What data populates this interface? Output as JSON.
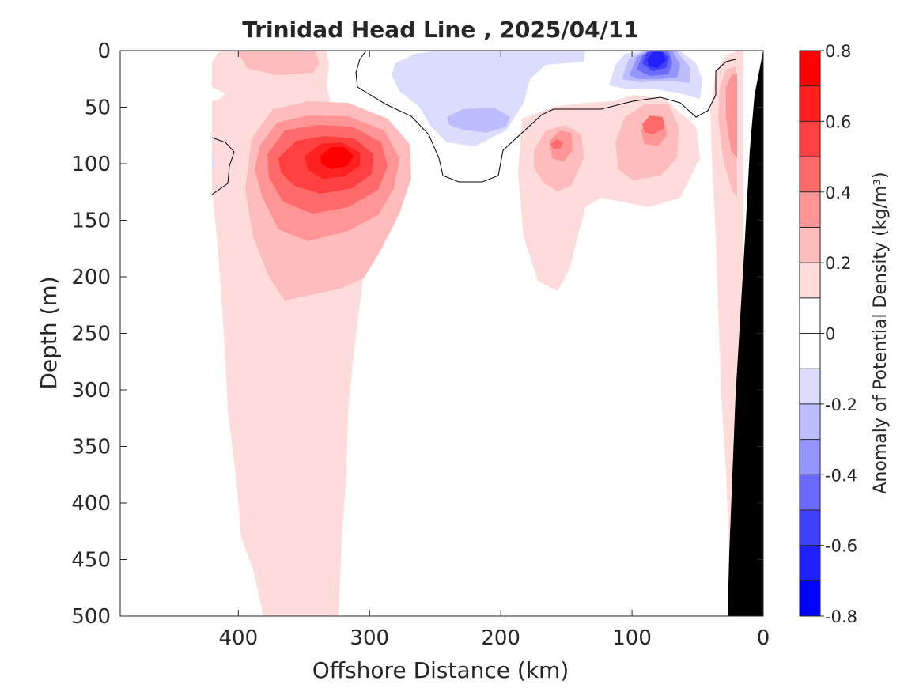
{
  "chart_data": {
    "type": "contour",
    "title": "Trinidad Head Line , 2025/04/11",
    "xlabel": "Offshore Distance (km)",
    "ylabel": "Depth (m)",
    "xlim": [
      490,
      0
    ],
    "ylim": [
      500,
      0
    ],
    "x_reversed": true,
    "y_reversed": true,
    "xticks": [
      400,
      300,
      200,
      100,
      0
    ],
    "xtick_labels": [
      "400",
      "300",
      "200",
      "100",
      "0"
    ],
    "yticks": [
      0,
      50,
      100,
      150,
      200,
      250,
      300,
      350,
      400,
      450,
      500
    ],
    "ytick_labels": [
      "0",
      "50",
      "100",
      "150",
      "200",
      "250",
      "300",
      "350",
      "400",
      "450",
      "500"
    ],
    "colorbar": {
      "label": "Anomaly of Potential Density (kg/m³)",
      "levels": [
        -0.8,
        -0.7,
        -0.6,
        -0.5,
        -0.4,
        -0.3,
        -0.2,
        -0.1,
        0,
        0.1,
        0.2,
        0.3,
        0.4,
        0.5,
        0.6,
        0.7,
        0.8
      ],
      "tick_values": [
        0.8,
        0.6,
        0.4,
        0.2,
        0,
        -0.2,
        -0.4,
        -0.6,
        -0.8
      ],
      "tick_labels": [
        "0.8",
        "0.6",
        "0.4",
        "0.2",
        "0",
        "-0.2",
        "-0.4",
        "-0.6",
        "-0.8"
      ],
      "colors_top_to_bottom": [
        "#ff0000",
        "#ff2020",
        "#ff4040",
        "#ff6a6a",
        "#ff9595",
        "#ffbcbc",
        "#ffdcdc",
        "#ffffff",
        "#ffffff",
        "#dcdcff",
        "#bcbcff",
        "#9595ff",
        "#6a6aff",
        "#4040ff",
        "#2020ff",
        "#0000ff"
      ]
    },
    "features": [
      {
        "name": "positive anomaly core",
        "x_km": 328,
        "depth_m": 95,
        "peak_value": 0.7
      },
      {
        "name": "positive anomaly column",
        "x_range_km": [
          410,
          325
        ],
        "depth_range_m": [
          0,
          500
        ],
        "value": 0.1
      },
      {
        "name": "negative anomaly core",
        "x_km": 82,
        "depth_m": 12,
        "peak_value": -0.6
      },
      {
        "name": "negative anomaly patch",
        "x_range_km": [
          290,
          170
        ],
        "depth_range_m": [
          0,
          80
        ],
        "value": -0.2
      },
      {
        "name": "positive patch",
        "x_km": 160,
        "depth_m": 85,
        "peak_value": 0.4
      },
      {
        "name": "positive patch",
        "x_km": 82,
        "depth_m": 70,
        "peak_value": 0.4
      },
      {
        "name": "coastal positive band",
        "x_km": 22,
        "depth_range_m": [
          0,
          360
        ],
        "peak_value": 0.4
      }
    ],
    "bathymetry_color": "#000000"
  }
}
